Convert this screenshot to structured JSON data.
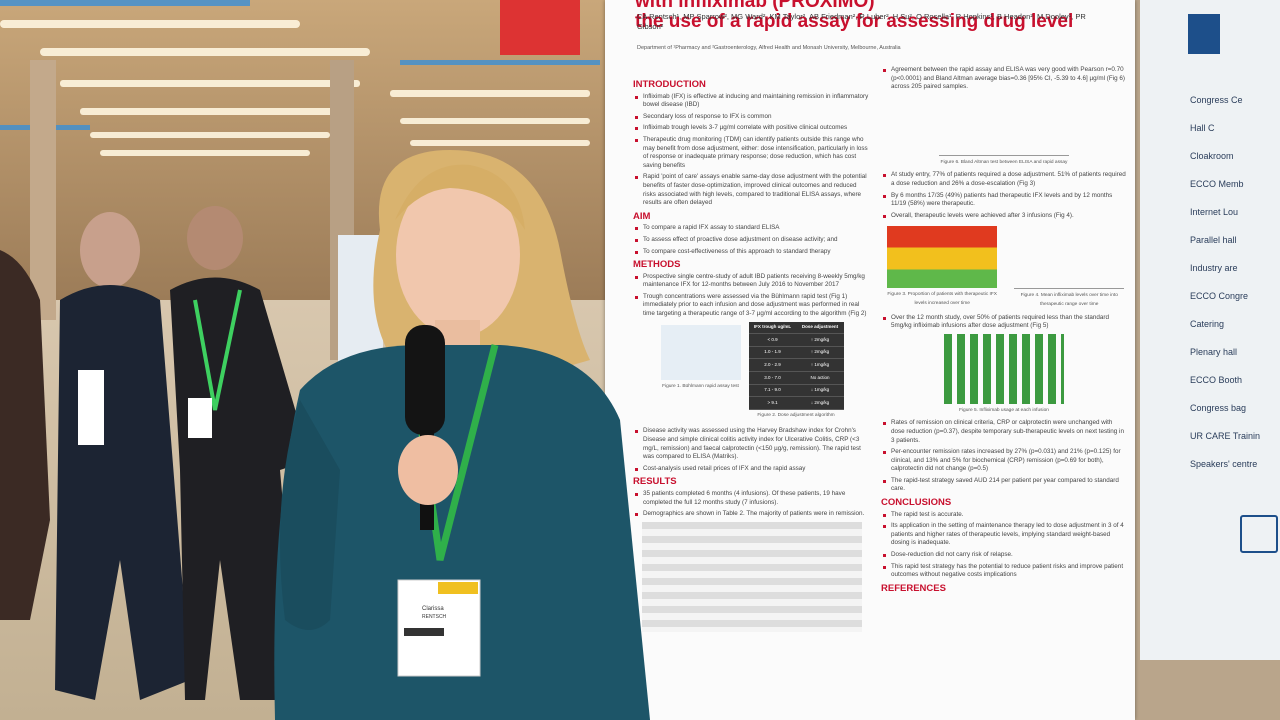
{
  "poster": {
    "title_lines": [
      "with infliximab (PROXIMO)",
      "the use of a rapid assay for assessing drug level"
    ],
    "authors": "CA Rentsch¹, MP Sparrow², MG Ward², KM Taylor², AB Friedman², R Luber², H Su², O Rosella¹, R Hopkins¹, B Headon², M Dooley¹, PR Gibson²",
    "affiliation": "Department of ¹Pharmacy and ²Gastroenterology, Alfred Health and Monash University, Melbourne, Australia",
    "left_sections": [
      {
        "heading": "INTRODUCTION",
        "items": [
          "Infliximab (IFX) is effective at inducing and maintaining remission in inflammatory bowel disease (IBD)",
          "Secondary loss of response to IFX is common",
          "Infliximab trough levels 3-7 µg/ml correlate with positive clinical outcomes",
          "Therapeutic drug monitoring (TDM) can identify patients outside this range who may benefit from dose adjustment, either: dose intensification, particularly in loss of response or inadequate primary response; dose reduction, which has cost saving benefits",
          "Rapid 'point of care' assays enable same-day dose adjustment with the potential benefits of faster dose-optimization, improved clinical outcomes and reduced risks associated with high levels, compared to traditional ELISA assays, where results are often delayed"
        ]
      },
      {
        "heading": "AIM",
        "items": [
          "To compare a rapid IFX assay to standard ELISA",
          "To assess effect of proactive dose adjustment on disease activity; and",
          "To compare cost-effectiveness of this approach to standard therapy"
        ]
      },
      {
        "heading": "METHODS",
        "items": [
          "Prospective single centre-study of adult IBD patients receiving 8-weekly 5mg/kg maintenance IFX for 12-months between July 2016 to November 2017",
          "Trough concentrations were assessed via the Bühlmann rapid test (Fig 1) immediately prior to each infusion and dose adjustment was performed in real time targeting a therapeutic range of 3-7 µg/ml according to the algorithm (Fig 2)"
        ]
      }
    ],
    "figure1_caption": "Figure 1. Bühlmann rapid assay test",
    "figure2_caption": "Figure 2. Dose adjustment algorithm",
    "dose_table": {
      "header": [
        "IFX trough ug/mL",
        "Dose adjustment"
      ],
      "rows": [
        [
          "< 0.9",
          "↑ 2mg/kg"
        ],
        [
          "1.0 - 1.9",
          "↑ 2mg/kg"
        ],
        [
          "2.0 - 2.9",
          "↑ 1mg/kg"
        ],
        [
          "3.0 - 7.0",
          "No action"
        ],
        [
          "7.1 - 9.0",
          "↓ 1mg/kg"
        ],
        [
          "> 9.1",
          "↓ 2mg/kg"
        ]
      ]
    },
    "methods_more": [
      "Disease activity was assessed using the Harvey Bradshaw index for Crohn's Disease and simple clinical colitis activity index for Ulcerative Colitis, CRP (<3 mg/L, remission) and faecal calprotectin (<150 µg/g, remission). The rapid test was compared to ELISA (Matriks).",
      "Cost-analysis used retail prices of IFX and the rapid assay"
    ],
    "results": {
      "heading": "RESULTS",
      "items": [
        "35 patients completed 6 months (4 infusions). Of these patients, 19 have completed the full 12 months study (7 infusions).",
        "Demographics are shown in Table 2. The majority of patients were in remission."
      ]
    },
    "right_top": [
      "Agreement between the rapid assay and ELISA was very good with Pearson r=0.70 (p<0.0001) and Bland Altman average bias=0.36 [95% CI, -5.39 to 4.6] µg/ml (Fig 6) across 205 paired samples."
    ],
    "figure6_caption": "Figure 6. Bland Altman test between ELISA and rapid assay",
    "right_mid": [
      "At study entry, 77% of patients required a dose adjustment. 51% of patients required a dose reduction and 26% a dose-escalation (Fig 3)",
      "By 6 months 17/35 (49%) patients had therapeutic IFX levels and by 12 months 11/19 (58%) were therapeutic.",
      "Overall, therapeutic levels were achieved after 3 infusions (Fig 4)."
    ],
    "figure3_caption": "Figure 3. Proportion of patients with therapeutic IFX levels increased over time",
    "figure4_caption": "Figure 4. Mean infliximab levels over time into therapeutic range over time",
    "right_mid2": [
      "Over the 12 month study, over 50% of patients required less than the standard 5mg/kg infliximab infusions after dose adjustment (Fig 5)"
    ],
    "figure5_caption": "Figure 5. Infliximab usage at each infusion",
    "right_bottom": [
      "Rates of remission on clinical criteria, CRP or calprotectin were unchanged with dose reduction (p=0.37), despite temporary sub-therapeutic levels on next testing in 3 patients.",
      "Per-encounter remission rates increased by 27% (p=0.031) and 21% (p=0.125) for clinical, and 13% and 5% for biochemical (CRP) remission (p=0.69 for both), calprotectin did not change (p=0.5)",
      "The rapid-test strategy saved AUD 214 per patient per year compared to standard care."
    ],
    "conclusions": {
      "heading": "CONCLUSIONS",
      "items": [
        "The rapid test is accurate.",
        "Its application in the setting of maintenance therapy led to dose adjustment in 3 of 4 patients and higher rates of therapeutic levels, implying standard weight-based dosing is inadequate.",
        "Dose-reduction did not carry risk of relapse.",
        "This rapid test strategy has the potential to reduce patient risks and improve patient outcomes without negative costs implications"
      ]
    },
    "references_heading": "REFERENCES"
  },
  "badge": {
    "name": "Clarissa",
    "surname": "RENTSCH"
  },
  "sign": {
    "items": [
      "Congress Ce",
      "Hall C",
      "Cloakroom",
      "ECCO Memb",
      "Internet Lou",
      "Parallel hall",
      "Industry are",
      "ECCO Congre",
      "Catering",
      "Plenary hall",
      "ECCO Booth",
      "Congress bag",
      "UR CARE Trainin",
      "Speakers' centre"
    ]
  }
}
